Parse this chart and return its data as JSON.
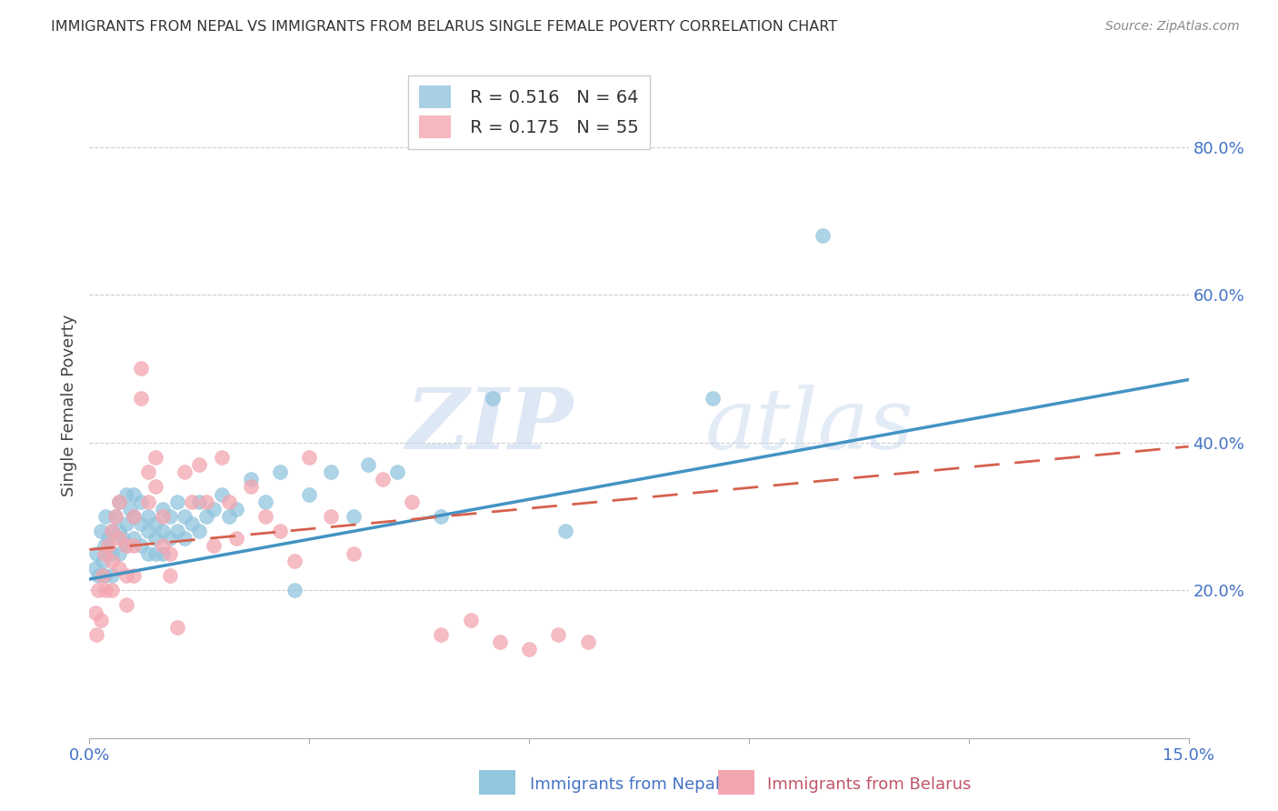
{
  "title": "IMMIGRANTS FROM NEPAL VS IMMIGRANTS FROM BELARUS SINGLE FEMALE POVERTY CORRELATION CHART",
  "source": "Source: ZipAtlas.com",
  "xlabel_nepal": "Immigrants from Nepal",
  "xlabel_belarus": "Immigrants from Belarus",
  "ylabel": "Single Female Poverty",
  "xlim": [
    0.0,
    0.15
  ],
  "ylim": [
    0.0,
    0.9
  ],
  "yticks_right": [
    0.2,
    0.4,
    0.6,
    0.8
  ],
  "ytick_labels_right": [
    "20.0%",
    "40.0%",
    "60.0%",
    "80.0%"
  ],
  "nepal_R": 0.516,
  "nepal_N": 64,
  "belarus_R": 0.175,
  "belarus_N": 55,
  "nepal_color": "#92c5de",
  "belarus_color": "#f4a6b0",
  "nepal_line_color": "#4393c3",
  "belarus_line_color": "#d6604d",
  "watermark_zip": "ZIP",
  "watermark_atlas": "atlas",
  "background_color": "#ffffff",
  "grid_color": "#cccccc",
  "nepal_line_intercept": 0.215,
  "nepal_line_slope": 1.8,
  "belarus_line_intercept": 0.255,
  "belarus_line_slope": 0.93,
  "nepal_x": [
    0.0008,
    0.001,
    0.0012,
    0.0015,
    0.0018,
    0.002,
    0.002,
    0.0022,
    0.0025,
    0.003,
    0.003,
    0.003,
    0.0035,
    0.004,
    0.004,
    0.004,
    0.0045,
    0.005,
    0.005,
    0.005,
    0.0055,
    0.006,
    0.006,
    0.006,
    0.007,
    0.007,
    0.007,
    0.008,
    0.008,
    0.008,
    0.009,
    0.009,
    0.009,
    0.01,
    0.01,
    0.01,
    0.011,
    0.011,
    0.012,
    0.012,
    0.013,
    0.013,
    0.014,
    0.015,
    0.015,
    0.016,
    0.017,
    0.018,
    0.019,
    0.02,
    0.022,
    0.024,
    0.026,
    0.028,
    0.03,
    0.033,
    0.036,
    0.038,
    0.042,
    0.048,
    0.055,
    0.065,
    0.085,
    0.1
  ],
  "nepal_y": [
    0.23,
    0.25,
    0.22,
    0.28,
    0.24,
    0.26,
    0.22,
    0.3,
    0.27,
    0.28,
    0.25,
    0.22,
    0.3,
    0.32,
    0.28,
    0.25,
    0.27,
    0.33,
    0.29,
    0.26,
    0.31,
    0.33,
    0.3,
    0.27,
    0.32,
    0.29,
    0.26,
    0.3,
    0.28,
    0.25,
    0.29,
    0.27,
    0.25,
    0.31,
    0.28,
    0.25,
    0.3,
    0.27,
    0.32,
    0.28,
    0.3,
    0.27,
    0.29,
    0.32,
    0.28,
    0.3,
    0.31,
    0.33,
    0.3,
    0.31,
    0.35,
    0.32,
    0.36,
    0.2,
    0.33,
    0.36,
    0.3,
    0.37,
    0.36,
    0.3,
    0.46,
    0.28,
    0.46,
    0.68
  ],
  "belarus_x": [
    0.0008,
    0.001,
    0.0012,
    0.0015,
    0.0018,
    0.002,
    0.0022,
    0.0025,
    0.003,
    0.003,
    0.003,
    0.0035,
    0.004,
    0.004,
    0.004,
    0.005,
    0.005,
    0.005,
    0.006,
    0.006,
    0.006,
    0.007,
    0.007,
    0.008,
    0.008,
    0.009,
    0.009,
    0.01,
    0.01,
    0.011,
    0.011,
    0.012,
    0.013,
    0.014,
    0.015,
    0.016,
    0.017,
    0.018,
    0.019,
    0.02,
    0.022,
    0.024,
    0.026,
    0.028,
    0.03,
    0.033,
    0.036,
    0.04,
    0.044,
    0.048,
    0.052,
    0.056,
    0.06,
    0.064,
    0.068
  ],
  "belarus_y": [
    0.17,
    0.14,
    0.2,
    0.16,
    0.22,
    0.25,
    0.2,
    0.26,
    0.28,
    0.24,
    0.2,
    0.3,
    0.32,
    0.27,
    0.23,
    0.26,
    0.22,
    0.18,
    0.3,
    0.26,
    0.22,
    0.5,
    0.46,
    0.36,
    0.32,
    0.38,
    0.34,
    0.3,
    0.26,
    0.25,
    0.22,
    0.15,
    0.36,
    0.32,
    0.37,
    0.32,
    0.26,
    0.38,
    0.32,
    0.27,
    0.34,
    0.3,
    0.28,
    0.24,
    0.38,
    0.3,
    0.25,
    0.35,
    0.32,
    0.14,
    0.16,
    0.13,
    0.12,
    0.14,
    0.13
  ]
}
